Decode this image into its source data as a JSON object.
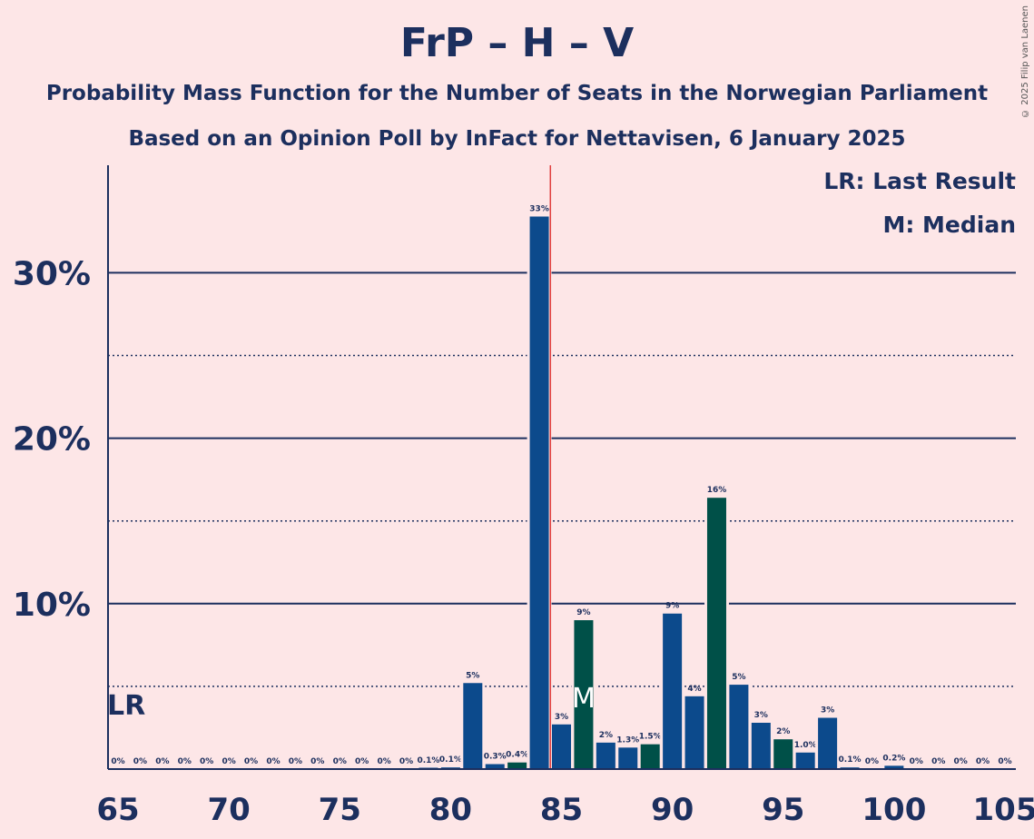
{
  "title": "FrP – H – V",
  "subtitle1": "Probability Mass Function for the Number of Seats in the Norwegian Parliament",
  "subtitle2": "Based on an Opinion Poll by InFact for Nettavisen, 6 January 2025",
  "copyright": "© 2025 Filip van Laenen",
  "legend": {
    "lr": "LR: Last Result",
    "median": "M: Median"
  },
  "markers": {
    "lr_label": "LR",
    "median_label": "M"
  },
  "colors": {
    "background": "#FDE6E7",
    "text": "#1C2F5E",
    "bar_blue": "#0C4A8C",
    "bar_green": "#005048",
    "majority_line": "#E04040"
  },
  "chart_data": {
    "type": "bar",
    "xlim": [
      65,
      105
    ],
    "ylim": [
      0,
      36.5
    ],
    "x_ticks": [
      65,
      70,
      75,
      80,
      85,
      90,
      95,
      100,
      105
    ],
    "y_ticks": [
      {
        "value": 10,
        "label": "10%"
      },
      {
        "value": 20,
        "label": "20%"
      },
      {
        "value": 30,
        "label": "30%"
      }
    ],
    "minor_gridlines": [
      5,
      15,
      25
    ],
    "majority_line_x": 84.5,
    "last_result_x": 65,
    "median_x": 86,
    "seats": [
      65,
      66,
      67,
      68,
      69,
      70,
      71,
      72,
      73,
      74,
      75,
      76,
      77,
      78,
      79,
      80,
      81,
      82,
      83,
      84,
      85,
      86,
      87,
      88,
      89,
      90,
      91,
      92,
      93,
      94,
      95,
      96,
      97,
      98,
      99,
      100,
      101,
      102,
      103,
      104,
      105
    ],
    "values": [
      0,
      0,
      0,
      0,
      0,
      0,
      0,
      0,
      0,
      0,
      0,
      0,
      0,
      0,
      0.05,
      0.1,
      5.2,
      0.3,
      0.4,
      33.4,
      2.7,
      9.0,
      1.6,
      1.3,
      1.5,
      9.4,
      4.4,
      16.4,
      5.1,
      2.8,
      1.8,
      1.0,
      3.1,
      0.1,
      0,
      0.2,
      0,
      0,
      0,
      0,
      0
    ],
    "labels": [
      "0%",
      "0%",
      "0%",
      "0%",
      "0%",
      "0%",
      "0%",
      "0%",
      "0%",
      "0%",
      "0%",
      "0%",
      "0%",
      "0%",
      "0.1%",
      "0.1%",
      "5%",
      "0.3%",
      "0.4%",
      "33%",
      "3%",
      "9%",
      "2%",
      "1.3%",
      "1.5%",
      "9%",
      "4%",
      "16%",
      "5%",
      "3%",
      "2%",
      "1.0%",
      "3%",
      "0.1%",
      "0%",
      "0.2%",
      "0%",
      "0%",
      "0%",
      "0%",
      "0%"
    ],
    "bar_colors": [
      "blue",
      "blue",
      "blue",
      "blue",
      "blue",
      "blue",
      "blue",
      "blue",
      "blue",
      "blue",
      "blue",
      "blue",
      "blue",
      "blue",
      "blue",
      "blue",
      "blue",
      "blue",
      "green",
      "blue",
      "blue",
      "green",
      "blue",
      "blue",
      "green",
      "blue",
      "blue",
      "green",
      "blue",
      "blue",
      "green",
      "blue",
      "blue",
      "blue",
      "blue",
      "blue",
      "blue",
      "blue",
      "blue",
      "blue",
      "blue"
    ]
  }
}
